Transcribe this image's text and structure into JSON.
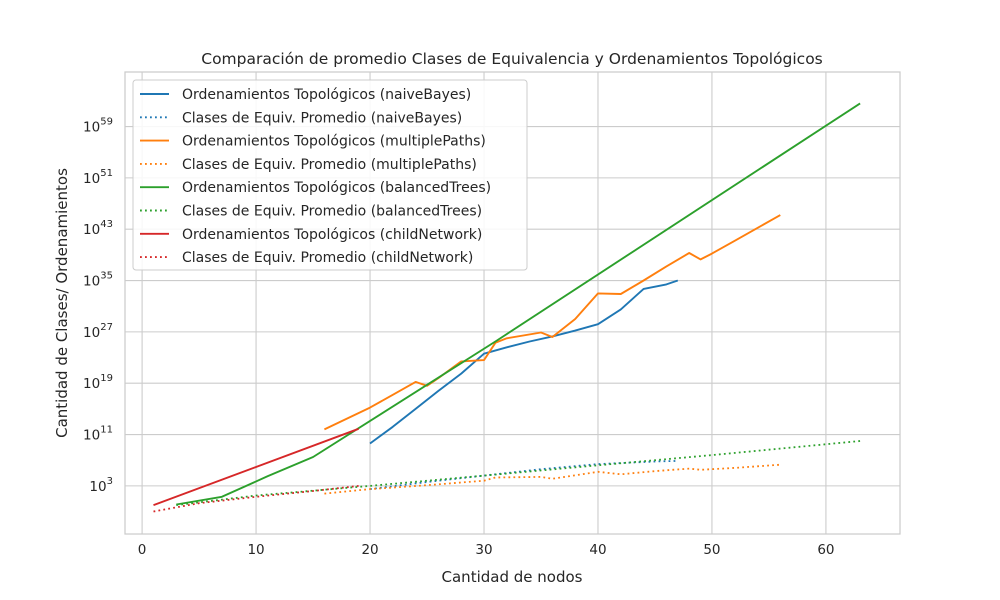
{
  "chart_data": {
    "type": "line",
    "title": "Comparación de promedio Clases de Equivalencia y Ordenamientos Topológicos",
    "xlabel": "Cantidad de nodos",
    "ylabel": "Cantidad de Clases/ Ordenamientos",
    "xlim": [
      -1.5,
      66.5
    ],
    "ylim_log10": [
      -4.5,
      67.5
    ],
    "yscale": "log",
    "grid": true,
    "legend_position": "top-left",
    "x_ticks": [
      0,
      10,
      20,
      30,
      40,
      50,
      60
    ],
    "y_ticks": [
      {
        "base": "10",
        "exp": "3",
        "log10": 3
      },
      {
        "base": "10",
        "exp": "11",
        "log10": 11
      },
      {
        "base": "10",
        "exp": "19",
        "log10": 19
      },
      {
        "base": "10",
        "exp": "27",
        "log10": 27
      },
      {
        "base": "10",
        "exp": "35",
        "log10": 35
      },
      {
        "base": "10",
        "exp": "43",
        "log10": 43
      },
      {
        "base": "10",
        "exp": "51",
        "log10": 51
      },
      {
        "base": "10",
        "exp": "59",
        "log10": 59
      }
    ],
    "series": [
      {
        "name": "Ordenamientos Topológicos (naiveBayes)",
        "color": "#1f77b4",
        "style": "solid",
        "x": [
          20,
          22,
          24,
          26,
          28,
          30,
          32,
          34,
          36,
          38,
          40,
          42,
          44,
          46,
          47
        ],
        "log10_y": [
          9.6,
          12.2,
          15.0,
          17.8,
          20.5,
          23.6,
          24.6,
          25.5,
          26.3,
          27.2,
          28.2,
          30.5,
          33.7,
          34.4,
          35.0
        ]
      },
      {
        "name": "Clases de Equiv. Promedio (naiveBayes)",
        "color": "#1f77b4",
        "style": "dotted",
        "x": [
          20,
          25,
          30,
          35,
          40,
          45,
          47
        ],
        "log10_y": [
          2.5,
          3.6,
          4.6,
          5.6,
          6.4,
          6.8,
          6.9
        ]
      },
      {
        "name": "Ordenamientos Topológicos (multiplePaths)",
        "color": "#ff7f0e",
        "style": "solid",
        "x": [
          16,
          18,
          20,
          22,
          24,
          25,
          26,
          28,
          30,
          31,
          32,
          35,
          36,
          38,
          40,
          42,
          44,
          46,
          48,
          49,
          50,
          52,
          54,
          56
        ],
        "log10_y": [
          11.8,
          13.5,
          15.2,
          17.2,
          19.2,
          18.6,
          19.8,
          22.4,
          22.6,
          25.3,
          26.0,
          26.9,
          26.2,
          29.0,
          33.0,
          32.9,
          35.0,
          37.2,
          39.3,
          38.3,
          39.2,
          41.2,
          43.2,
          45.2
        ]
      },
      {
        "name": "Clases de Equiv. Promedio (multiplePaths)",
        "color": "#ff7f0e",
        "style": "dotted",
        "x": [
          16,
          20,
          25,
          30,
          31,
          35,
          36,
          40,
          42,
          45,
          48,
          49,
          52,
          56
        ],
        "log10_y": [
          1.8,
          2.5,
          3.1,
          3.8,
          4.3,
          4.4,
          4.1,
          5.2,
          4.8,
          5.3,
          5.7,
          5.5,
          5.8,
          6.3
        ]
      },
      {
        "name": "Ordenamientos Topológicos (balancedTrees)",
        "color": "#2ca02c",
        "style": "solid",
        "x": [
          3,
          7,
          11,
          15,
          31,
          63
        ],
        "log10_y": [
          0.1,
          1.3,
          4.5,
          7.5,
          25.5,
          62.6
        ]
      },
      {
        "name": "Clases de Equiv. Promedio (balancedTrees)",
        "color": "#2ca02c",
        "style": "dotted",
        "x": [
          3,
          10,
          20,
          30,
          40,
          50,
          63
        ],
        "log10_y": [
          0.0,
          1.5,
          3.0,
          4.6,
          6.2,
          7.8,
          10.0
        ]
      },
      {
        "name": "Ordenamientos Topológicos (childNetwork)",
        "color": "#d62728",
        "style": "solid",
        "x": [
          1,
          19
        ],
        "log10_y": [
          0.0,
          11.9
        ]
      },
      {
        "name": "Clases de Equiv. Promedio (childNetwork)",
        "color": "#d62728",
        "style": "dotted",
        "x": [
          1,
          5,
          10,
          15,
          19
        ],
        "log10_y": [
          -1.0,
          0.3,
          1.3,
          2.2,
          3.0
        ]
      }
    ]
  }
}
